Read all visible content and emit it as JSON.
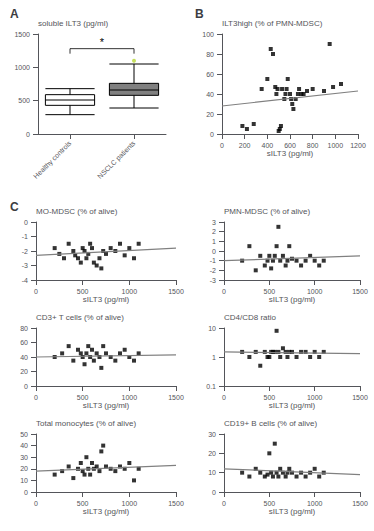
{
  "chart_data": [
    {
      "type": "box",
      "title": "A",
      "ylabel": "soluble ILT3 (pg/ml)",
      "categories": [
        "Healthy controls",
        "NSCLC patients"
      ],
      "boxes": [
        {
          "median": 510,
          "q1": 430,
          "q3": 590,
          "whisker_low": 290,
          "whisker_high": 680,
          "color": "white"
        },
        {
          "median": 660,
          "q1": 580,
          "q3": 760,
          "whisker_low": 390,
          "whisker_high": 1050,
          "outliers": [
            1100
          ],
          "color": "#808080"
        }
      ],
      "ylim": [
        0,
        1500
      ],
      "yticks": [
        0,
        500,
        1000,
        1500
      ],
      "annotation": "*",
      "grid": false
    },
    {
      "type": "scatter",
      "title": "B",
      "xlabel": "sILT3 (pg/ml)",
      "ylabel": "ILT3high (% of PMN-MDSC)",
      "xlim": [
        0,
        1200
      ],
      "ylim": [
        0,
        100
      ],
      "xticks": [
        0,
        200,
        400,
        600,
        800,
        1000,
        1200
      ],
      "yticks": [
        0,
        20,
        40,
        60,
        80,
        100
      ],
      "grid": false,
      "series": [
        {
          "type": "scatter",
          "color": "#000000",
          "marker": "square",
          "x": [
            180,
            220,
            280,
            350,
            400,
            430,
            450,
            470,
            480,
            490,
            500,
            510,
            520,
            530,
            550,
            560,
            570,
            580,
            600,
            610,
            620,
            630,
            650,
            670,
            680,
            700,
            720,
            750,
            800,
            900,
            950,
            980,
            1050
          ],
          "values": [
            8,
            5,
            10,
            45,
            55,
            85,
            80,
            47,
            40,
            45,
            3,
            5,
            8,
            45,
            35,
            40,
            45,
            55,
            40,
            35,
            30,
            25,
            35,
            40,
            45,
            40,
            40,
            43,
            45,
            43,
            90,
            47,
            50
          ]
        },
        {
          "type": "line",
          "color": "#808080",
          "x": [
            0,
            1200
          ],
          "values": [
            28,
            43
          ]
        }
      ]
    },
    {
      "type": "scatter",
      "title": "C",
      "xlabel": "sILT3 (pg/ml)",
      "ylabel": "MO-MDSC (% of alive)",
      "xlim": [
        0,
        1500
      ],
      "ylim": [
        -4,
        0
      ],
      "xticks": [
        0,
        500,
        1000,
        1500
      ],
      "yticks": [
        -4,
        -3,
        -2,
        -1,
        0
      ],
      "grid": false,
      "series": [
        {
          "type": "scatter",
          "color": "#000000",
          "marker": "square",
          "x": [
            200,
            250,
            300,
            350,
            400,
            420,
            450,
            480,
            500,
            520,
            540,
            560,
            580,
            600,
            620,
            650,
            680,
            700,
            720,
            750,
            800,
            850,
            900,
            950,
            1000,
            1050,
            1100
          ],
          "values": [
            -1.8,
            -2.2,
            -2.5,
            -1.5,
            -2.0,
            -2.3,
            -2.5,
            -2.8,
            -1.8,
            -2.0,
            -2.5,
            -2.2,
            -1.5,
            -1.8,
            -2.8,
            -3.0,
            -2.5,
            -3.2,
            -2.0,
            -2.2,
            -1.8,
            -2.0,
            -1.5,
            -2.3,
            -1.8,
            -2.5,
            -1.5
          ]
        },
        {
          "type": "line",
          "color": "#808080",
          "x": [
            0,
            1500
          ],
          "values": [
            -2.3,
            -1.8
          ]
        }
      ]
    },
    {
      "type": "scatter",
      "xlabel": "sILT3 (pg/ml)",
      "ylabel": "PMN-MDSC (% of alive)",
      "xlim": [
        0,
        1500
      ],
      "ylim": [
        -3,
        3
      ],
      "xticks": [
        0,
        500,
        1000,
        1500
      ],
      "yticks": [
        -3,
        -2,
        -1,
        0,
        1,
        2,
        3
      ],
      "grid": false,
      "series": [
        {
          "type": "scatter",
          "color": "#000000",
          "marker": "square",
          "x": [
            200,
            280,
            350,
            400,
            450,
            480,
            500,
            520,
            540,
            560,
            580,
            600,
            620,
            650,
            680,
            700,
            720,
            750,
            800,
            850,
            900,
            950,
            1000,
            1050,
            1100
          ],
          "values": [
            -1.0,
            0.5,
            -2.0,
            -0.5,
            -1.5,
            -1.0,
            -0.5,
            -1.8,
            -1.0,
            -0.5,
            0.5,
            2.5,
            -1.0,
            -0.5,
            -1.5,
            -1.0,
            0.5,
            -0.8,
            -1.0,
            -1.5,
            -1.0,
            -0.5,
            -1.0,
            -1.5,
            -1.0
          ]
        },
        {
          "type": "line",
          "color": "#808080",
          "x": [
            0,
            1500
          ],
          "values": [
            -1.0,
            -0.5
          ]
        }
      ]
    },
    {
      "type": "scatter",
      "xlabel": "sILT3 (pg/ml)",
      "ylabel": "CD3+ T cells (% of alive)",
      "xlim": [
        0,
        1500
      ],
      "ylim": [
        0,
        80
      ],
      "xticks": [
        0,
        500,
        1000,
        1500
      ],
      "yticks": [
        0,
        20,
        40,
        60,
        80
      ],
      "grid": false,
      "series": [
        {
          "type": "scatter",
          "color": "#000000",
          "marker": "square",
          "x": [
            200,
            280,
            350,
            400,
            450,
            480,
            500,
            520,
            540,
            560,
            580,
            600,
            620,
            650,
            680,
            700,
            720,
            750,
            800,
            850,
            900,
            950,
            1000,
            1050,
            1100
          ],
          "values": [
            40,
            45,
            55,
            35,
            50,
            45,
            40,
            30,
            45,
            55,
            40,
            50,
            35,
            45,
            40,
            25,
            55,
            45,
            40,
            35,
            45,
            50,
            40,
            35,
            45
          ]
        },
        {
          "type": "line",
          "color": "#808080",
          "x": [
            0,
            1500
          ],
          "values": [
            40,
            43
          ]
        }
      ]
    },
    {
      "type": "scatter",
      "xlabel": "sILT3 (pg/ml)",
      "ylabel": "CD4/CD8 ratio",
      "log": "y",
      "xlim": [
        0,
        1500
      ],
      "ylim": [
        0.1,
        10
      ],
      "xticks": [
        0,
        500,
        1000,
        1500
      ],
      "yticks": [
        0.1,
        1,
        10
      ],
      "grid": false,
      "series": [
        {
          "type": "scatter",
          "color": "#000000",
          "marker": "square",
          "x": [
            200,
            280,
            350,
            400,
            450,
            480,
            500,
            520,
            540,
            560,
            580,
            600,
            620,
            650,
            680,
            700,
            720,
            750,
            800,
            850,
            900,
            950,
            1000,
            1050,
            1100
          ],
          "values": [
            1.5,
            1.0,
            1.5,
            0.5,
            1.5,
            1.0,
            1.0,
            1.5,
            1.5,
            1.5,
            8,
            1.5,
            1.0,
            2.0,
            1.5,
            1.0,
            1.5,
            1.5,
            1.0,
            1.5,
            1.5,
            1.0,
            1.5,
            1.0,
            1.5
          ]
        },
        {
          "type": "line",
          "color": "#808080",
          "x": [
            0,
            1500
          ],
          "values": [
            1.5,
            1.3
          ]
        }
      ]
    },
    {
      "type": "scatter",
      "xlabel": "sILT3 (pg/ml)",
      "ylabel": "Total monocytes (% of alive)",
      "xlim": [
        0,
        1500
      ],
      "ylim": [
        0,
        50
      ],
      "xticks": [
        0,
        500,
        1000,
        1500
      ],
      "yticks": [
        0,
        10,
        20,
        30,
        40,
        50
      ],
      "grid": false,
      "series": [
        {
          "type": "scatter",
          "color": "#000000",
          "marker": "square",
          "x": [
            200,
            280,
            350,
            400,
            450,
            480,
            500,
            520,
            540,
            560,
            580,
            600,
            620,
            650,
            680,
            700,
            720,
            750,
            800,
            850,
            900,
            950,
            1000,
            1050,
            1100
          ],
          "values": [
            15,
            18,
            22,
            12,
            20,
            25,
            18,
            15,
            30,
            20,
            15,
            25,
            20,
            22,
            18,
            35,
            40,
            22,
            20,
            18,
            22,
            20,
            25,
            10,
            20
          ]
        },
        {
          "type": "line",
          "color": "#808080",
          "x": [
            0,
            1500
          ],
          "values": [
            18,
            23
          ]
        }
      ]
    },
    {
      "type": "scatter",
      "xlabel": "sILT3 (pg/ml)",
      "ylabel": "CD19+ B cells (% of alive)",
      "xlim": [
        0,
        1500
      ],
      "ylim": [
        0,
        30
      ],
      "xticks": [
        0,
        500,
        1000,
        1500
      ],
      "yticks": [
        0,
        10,
        20,
        30
      ],
      "grid": false,
      "series": [
        {
          "type": "scatter",
          "color": "#000000",
          "marker": "square",
          "x": [
            200,
            280,
            350,
            400,
            450,
            480,
            500,
            520,
            540,
            560,
            580,
            600,
            620,
            650,
            680,
            700,
            720,
            750,
            800,
            850,
            900,
            950,
            1000,
            1050,
            1100
          ],
          "values": [
            10,
            8,
            12,
            10,
            8,
            9,
            20,
            10,
            8,
            25,
            10,
            8,
            12,
            10,
            8,
            10,
            12,
            10,
            8,
            10,
            8,
            10,
            12,
            8,
            10
          ]
        },
        {
          "type": "line",
          "color": "#808080",
          "x": [
            0,
            1500
          ],
          "values": [
            12,
            9
          ]
        }
      ]
    }
  ]
}
